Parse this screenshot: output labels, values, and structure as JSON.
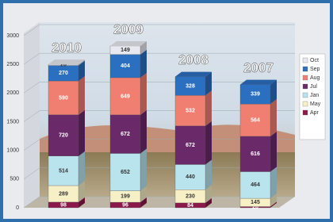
{
  "chart_data": {
    "type": "bar3d-stacked",
    "categories": [
      "2010",
      "2009",
      "2008",
      "2007"
    ],
    "series": [
      {
        "name": "Apr",
        "color": "#8b1a4a",
        "values": [
          98,
          96,
          84,
          20
        ]
      },
      {
        "name": "May",
        "color": "#f7f0c6",
        "values": [
          289,
          199,
          230,
          145
        ]
      },
      {
        "name": "Jan",
        "color": "#b9e4ee",
        "values": [
          514,
          652,
          440,
          464
        ]
      },
      {
        "name": "Jul",
        "color": "#6a2a6a",
        "values": [
          720,
          672,
          672,
          616
        ]
      },
      {
        "name": "Aug",
        "color": "#f07f72",
        "values": [
          590,
          649,
          532,
          564
        ]
      },
      {
        "name": "Sep",
        "color": "#2b6fc0",
        "values": [
          270,
          404,
          328,
          339
        ]
      },
      {
        "name": "Oct",
        "color": "#e8e8f0",
        "values": [
          20,
          149,
          null,
          null
        ]
      }
    ],
    "ylim": [
      0,
      3000
    ],
    "yticks": [
      0,
      500,
      1000,
      1500,
      2000,
      2500,
      3000
    ],
    "grid": true
  }
}
